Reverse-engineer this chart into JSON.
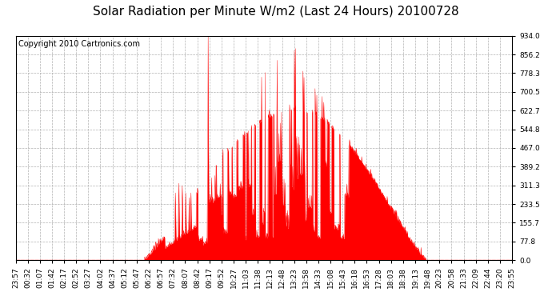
{
  "title": "Solar Radiation per Minute W/m2 (Last 24 Hours) 20100728",
  "copyright": "Copyright 2010 Cartronics.com",
  "bg_color": "#ffffff",
  "plot_bg_color": "#ffffff",
  "fill_color": "#ff0000",
  "line_color": "#ff0000",
  "grid_color": "#aaaaaa",
  "border_color": "#000000",
  "yticks": [
    0.0,
    77.8,
    155.7,
    233.5,
    311.3,
    389.2,
    467.0,
    544.8,
    622.7,
    700.5,
    778.3,
    856.2,
    934.0
  ],
  "ymax": 934.0,
  "ymin": 0.0,
  "xtick_labels": [
    "23:57",
    "00:32",
    "01:07",
    "01:42",
    "02:17",
    "02:52",
    "03:27",
    "04:02",
    "04:37",
    "05:12",
    "05:47",
    "06:22",
    "06:57",
    "07:32",
    "08:07",
    "08:42",
    "09:17",
    "09:52",
    "10:27",
    "11:03",
    "11:38",
    "12:13",
    "12:48",
    "13:23",
    "13:58",
    "14:33",
    "15:08",
    "15:43",
    "16:18",
    "16:53",
    "17:28",
    "18:03",
    "18:38",
    "19:13",
    "19:48",
    "20:23",
    "20:58",
    "21:33",
    "22:09",
    "22:44",
    "23:20",
    "23:55"
  ],
  "title_fontsize": 11,
  "copyright_fontsize": 7,
  "tick_fontsize": 6.5
}
